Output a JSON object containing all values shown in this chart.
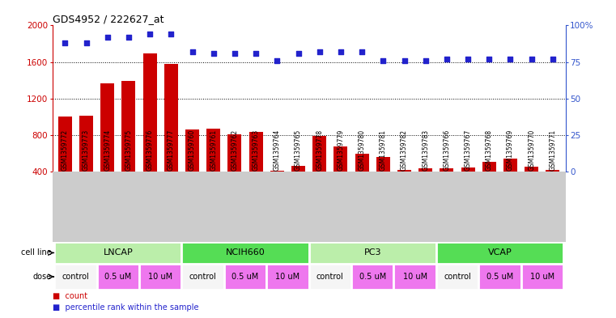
{
  "title": "GDS4952 / 222627_at",
  "samples": [
    "GSM1359772",
    "GSM1359773",
    "GSM1359774",
    "GSM1359775",
    "GSM1359776",
    "GSM1359777",
    "GSM1359760",
    "GSM1359761",
    "GSM1359762",
    "GSM1359763",
    "GSM1359764",
    "GSM1359765",
    "GSM1359778",
    "GSM1359779",
    "GSM1359780",
    "GSM1359781",
    "GSM1359782",
    "GSM1359783",
    "GSM1359766",
    "GSM1359767",
    "GSM1359768",
    "GSM1359769",
    "GSM1359770",
    "GSM1359771"
  ],
  "counts": [
    1000,
    1010,
    1370,
    1390,
    1690,
    1580,
    860,
    870,
    810,
    835,
    415,
    465,
    790,
    680,
    600,
    565,
    420,
    440,
    435,
    445,
    510,
    545,
    455,
    420
  ],
  "percentile_ranks": [
    88,
    88,
    92,
    92,
    94,
    94,
    82,
    81,
    81,
    81,
    76,
    81,
    82,
    82,
    82,
    76,
    76,
    76,
    77,
    77,
    77,
    77,
    77,
    77
  ],
  "bar_color": "#cc0000",
  "dot_color": "#2222cc",
  "ylim_left": [
    400,
    2000
  ],
  "ylim_right": [
    0,
    100
  ],
  "yticks_left": [
    400,
    800,
    1200,
    1600,
    2000
  ],
  "yticks_right": [
    0,
    25,
    50,
    75,
    100
  ],
  "cell_lines": [
    {
      "label": "LNCAP",
      "start": 0,
      "end": 6,
      "color": "#bbeeaa"
    },
    {
      "label": "NCIH660",
      "start": 6,
      "end": 12,
      "color": "#55dd55"
    },
    {
      "label": "PC3",
      "start": 12,
      "end": 18,
      "color": "#bbeeaa"
    },
    {
      "label": "VCAP",
      "start": 18,
      "end": 24,
      "color": "#55dd55"
    }
  ],
  "doses": [
    {
      "label": "control",
      "start": 0,
      "end": 2,
      "color": "#f5f5f5"
    },
    {
      "label": "0.5 uM",
      "start": 2,
      "end": 4,
      "color": "#ee77ee"
    },
    {
      "label": "10 uM",
      "start": 4,
      "end": 6,
      "color": "#ee77ee"
    },
    {
      "label": "control",
      "start": 6,
      "end": 8,
      "color": "#f5f5f5"
    },
    {
      "label": "0.5 uM",
      "start": 8,
      "end": 10,
      "color": "#ee77ee"
    },
    {
      "label": "10 uM",
      "start": 10,
      "end": 12,
      "color": "#ee77ee"
    },
    {
      "label": "control",
      "start": 12,
      "end": 14,
      "color": "#f5f5f5"
    },
    {
      "label": "0.5 uM",
      "start": 14,
      "end": 16,
      "color": "#ee77ee"
    },
    {
      "label": "10 uM",
      "start": 16,
      "end": 18,
      "color": "#ee77ee"
    },
    {
      "label": "control",
      "start": 18,
      "end": 20,
      "color": "#f5f5f5"
    },
    {
      "label": "0.5 uM",
      "start": 20,
      "end": 22,
      "color": "#ee77ee"
    },
    {
      "label": "10 uM",
      "start": 22,
      "end": 24,
      "color": "#ee77ee"
    }
  ],
  "xtick_bg_color": "#cccccc",
  "legend_items": [
    {
      "color": "#cc0000",
      "label": "count"
    },
    {
      "color": "#2222cc",
      "label": "percentile rank within the sample"
    }
  ]
}
